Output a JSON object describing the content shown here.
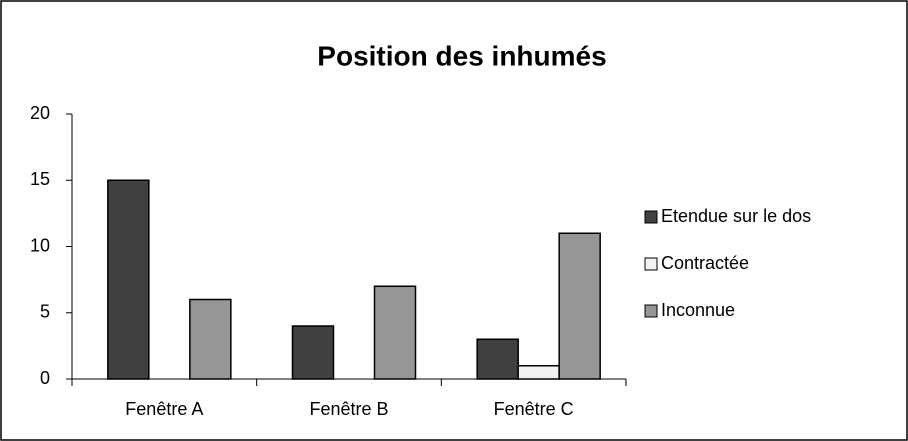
{
  "chart_data": {
    "type": "bar",
    "title": "Position des inhumés",
    "categories": [
      "Fenêtre A",
      "Fenêtre B",
      "Fenêtre C"
    ],
    "series": [
      {
        "name": "Etendue sur le dos",
        "color": "#404040",
        "values": [
          15,
          4,
          3
        ]
      },
      {
        "name": "Contractée",
        "color": "#f2f2f2",
        "values": [
          0,
          0,
          1
        ]
      },
      {
        "name": "Inconnue",
        "color": "#969696",
        "values": [
          6,
          7,
          11
        ]
      }
    ],
    "ylim": [
      0,
      20
    ],
    "yticks": [
      0,
      5,
      10,
      15,
      20
    ],
    "grid": false,
    "legend": "right"
  }
}
